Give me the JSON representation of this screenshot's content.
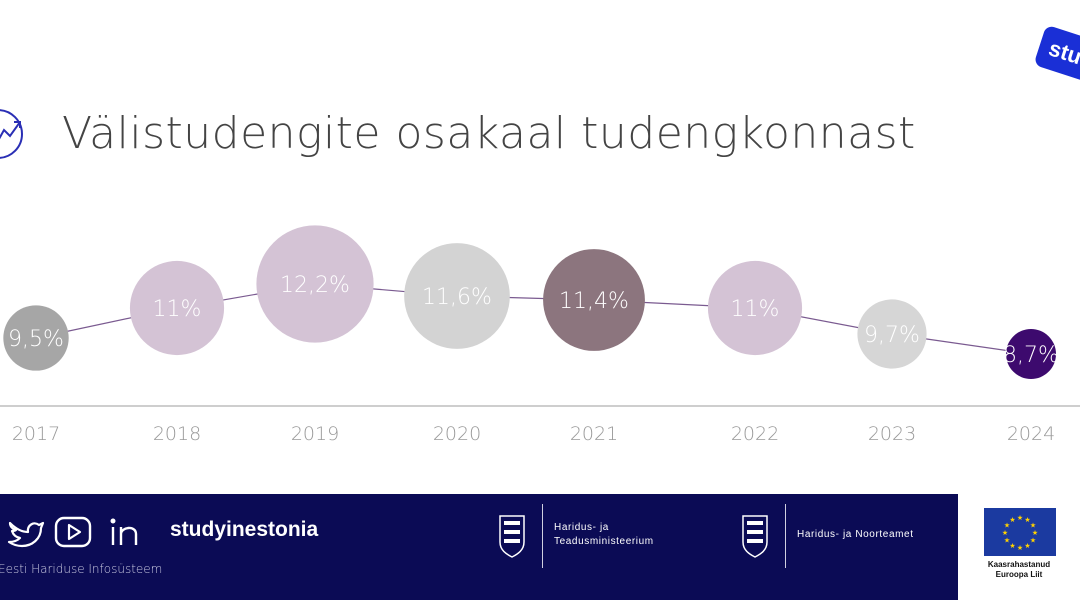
{
  "page": {
    "title": "Välistudengite osakaal tudengkonnast",
    "logo_text": "stu"
  },
  "chart_data": {
    "type": "bubble",
    "title": "Välistudengite osakaal tudengkonnast",
    "categories": [
      "2017",
      "2018",
      "2019",
      "2020",
      "2021",
      "2022",
      "2023",
      "2024"
    ],
    "values": [
      9.5,
      11.0,
      12.2,
      11.6,
      11.4,
      11.0,
      9.7,
      8.7
    ],
    "labels": [
      "9,5%",
      "11%",
      "12,2%",
      "11,6%",
      "11,4%",
      "11%",
      "9,7%",
      "8,7%"
    ],
    "colors": [
      "#a6a6a6",
      "#d4c3d5",
      "#d4c3d5",
      "#d3d3d3",
      "#8c757e",
      "#d4c3d5",
      "#d6d6d6",
      "#3d0a6e"
    ],
    "line_color": "#7a5a90",
    "unit": "%"
  },
  "footer": {
    "brand": "studyinestonia",
    "source": "Eesti Hariduse Infosüsteem",
    "ministry_1_line1": "Haridus- ja",
    "ministry_1_line2": "Teadusministeerium",
    "ministry_2": "Haridus- ja Noorteamet",
    "eu_line1": "Kaasrahastanud",
    "eu_line2": "Euroopa Liit",
    "social_icons": [
      "twitter-icon",
      "youtube-icon",
      "linkedin-icon"
    ]
  }
}
